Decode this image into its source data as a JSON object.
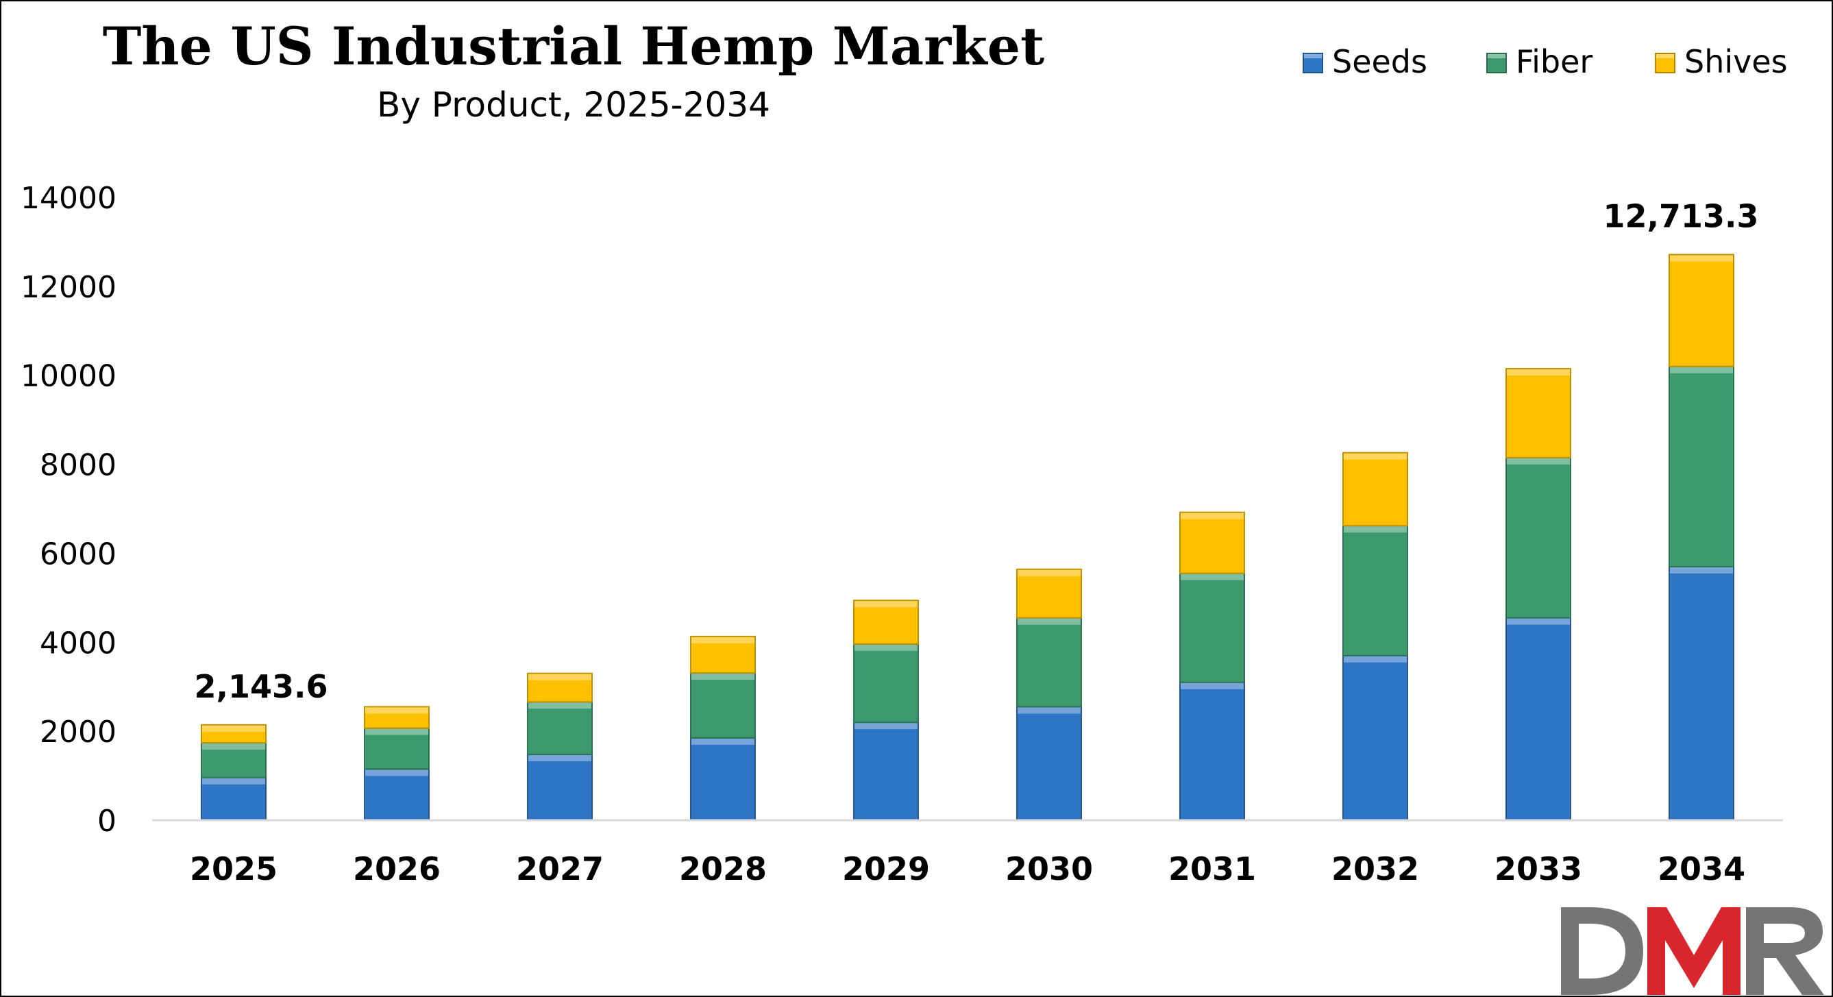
{
  "chart_data": {
    "type": "bar",
    "stacked": true,
    "title": "The US Industrial Hemp Market",
    "subtitle": "By Product, 2025-2034",
    "categories": [
      "2025",
      "2026",
      "2027",
      "2028",
      "2029",
      "2030",
      "2031",
      "2032",
      "2033",
      "2034"
    ],
    "series": [
      {
        "name": "Seeds",
        "color": "#2E75C6",
        "values": [
          960,
          1150,
          1480,
          1850,
          2200,
          2550,
          3100,
          3700,
          4550,
          5700
        ]
      },
      {
        "name": "Fiber",
        "color": "#3C9A6E",
        "values": [
          780,
          920,
          1180,
          1460,
          1760,
          2000,
          2450,
          2920,
          3600,
          4500
        ]
      },
      {
        "name": "Shives",
        "color": "#FFC000",
        "values": [
          403.6,
          480,
          640,
          820,
          980,
          1090,
          1370,
          1640,
          2000,
          2513.3
        ]
      }
    ],
    "ylim": [
      0,
      14000
    ],
    "yticks": [
      0,
      2000,
      4000,
      6000,
      8000,
      10000,
      12000,
      14000
    ],
    "grid": false,
    "legend": "top-right",
    "annotations": [
      {
        "category": "2025",
        "text": "2,143.6"
      },
      {
        "category": "2034",
        "text": "12,713.3"
      }
    ]
  },
  "logo": {
    "text": "DMR",
    "colors": [
      "#757575",
      "#D8262E",
      "#757575"
    ]
  }
}
